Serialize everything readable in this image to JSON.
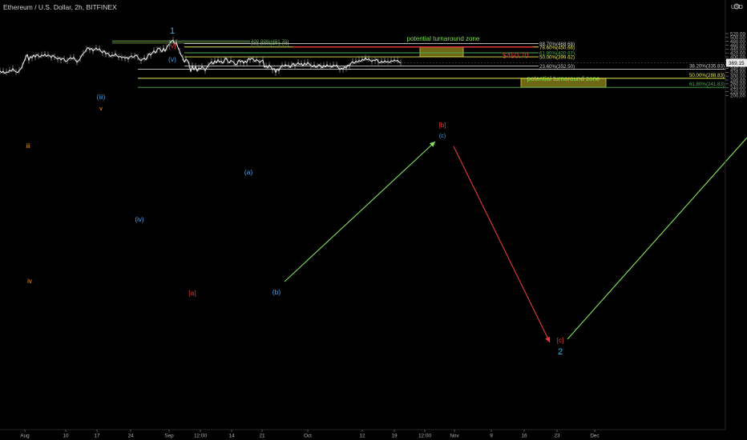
{
  "header": {
    "title": "Ethereum / U.S. Dollar, 2h, BITFINEX",
    "currency": "USD"
  },
  "gear_icon": "gear-icon",
  "chart_data": {
    "type": "line",
    "title": "Ethereum / U.S. Dollar, 2h, BITFINEX",
    "ylabel": "USD",
    "ylim": [
      190,
      530
    ],
    "y_ticks": [
      200,
      220,
      240,
      260,
      280,
      300,
      320,
      340,
      360,
      380,
      400,
      420,
      440,
      460,
      480,
      500,
      520
    ],
    "x_ticks": [
      "Aug",
      "10",
      "17",
      "24",
      "Sep",
      "12:00",
      "14",
      "21",
      "Oct",
      "12",
      "19",
      "12:00",
      "Nov",
      "9",
      "16",
      "23",
      "Dec"
    ],
    "current_price": "369.15",
    "series": [
      {
        "values": [
          [
            0,
            327
          ],
          [
            2,
            318
          ],
          [
            4,
            326
          ],
          [
            6,
            314
          ],
          [
            8,
            322
          ],
          [
            10,
            319
          ],
          [
            12,
            331
          ],
          [
            14,
            325
          ],
          [
            16,
            339
          ],
          [
            18,
            327
          ],
          [
            20,
            322
          ],
          [
            22,
            318
          ],
          [
            24,
            330
          ],
          [
            26,
            337
          ],
          [
            28,
            355
          ],
          [
            30,
            376
          ],
          [
            32,
            396
          ],
          [
            34,
            412
          ],
          [
            36,
            381
          ],
          [
            38,
            402
          ],
          [
            40,
            394
          ],
          [
            42,
            409
          ],
          [
            44,
            398
          ],
          [
            46,
            412
          ],
          [
            48,
            405
          ],
          [
            50,
            398
          ],
          [
            52,
            410
          ],
          [
            54,
            404
          ],
          [
            56,
            414
          ],
          [
            58,
            402
          ],
          [
            60,
            410
          ],
          [
            62,
            405
          ],
          [
            64,
            396
          ],
          [
            66,
            408
          ],
          [
            68,
            400
          ],
          [
            70,
            394
          ],
          [
            72,
            388
          ],
          [
            74,
            396
          ],
          [
            76,
            383
          ],
          [
            78,
            392
          ],
          [
            80,
            388
          ],
          [
            82,
            375
          ],
          [
            84,
            380
          ],
          [
            86,
            390
          ],
          [
            88,
            396
          ],
          [
            90,
            389
          ],
          [
            92,
            398
          ],
          [
            94,
            384
          ],
          [
            96,
            372
          ],
          [
            98,
            380
          ],
          [
            100,
            390
          ],
          [
            102,
            408
          ],
          [
            104,
            418
          ],
          [
            106,
            425
          ],
          [
            108,
            440
          ],
          [
            110,
            448
          ],
          [
            112,
            436
          ],
          [
            114,
            444
          ],
          [
            116,
            430
          ],
          [
            118,
            438
          ],
          [
            120,
            446
          ],
          [
            122,
            435
          ],
          [
            124,
            442
          ],
          [
            126,
            428
          ],
          [
            128,
            421
          ],
          [
            130,
            432
          ],
          [
            132,
            414
          ],
          [
            134,
            420
          ],
          [
            136,
            411
          ],
          [
            138,
            401
          ],
          [
            140,
            410
          ],
          [
            142,
            404
          ],
          [
            144,
            416
          ],
          [
            146,
            405
          ],
          [
            148,
            398
          ],
          [
            150,
            402
          ],
          [
            152,
            395
          ],
          [
            154,
            400
          ],
          [
            156,
            392
          ],
          [
            158,
            398
          ],
          [
            160,
            388
          ],
          [
            162,
            399
          ],
          [
            164,
            405
          ],
          [
            166,
            396
          ],
          [
            168,
            404
          ],
          [
            170,
            410
          ],
          [
            172,
            398
          ],
          [
            174,
            386
          ],
          [
            176,
            380
          ],
          [
            178,
            388
          ],
          [
            180,
            394
          ],
          [
            182,
            384
          ],
          [
            184,
            402
          ],
          [
            186,
            417
          ],
          [
            188,
            408
          ],
          [
            190,
            420
          ],
          [
            192,
            432
          ],
          [
            194,
            420
          ],
          [
            196,
            436
          ],
          [
            198,
            446
          ],
          [
            200,
            438
          ],
          [
            202,
            425
          ],
          [
            204,
            445
          ],
          [
            206,
            428
          ],
          [
            208,
            448
          ],
          [
            210,
            460
          ],
          [
            212,
            470
          ],
          [
            214,
            481
          ],
          [
            216,
            486
          ],
          [
            218,
            466
          ],
          [
            220,
            475
          ],
          [
            222,
            448
          ],
          [
            224,
            430
          ],
          [
            226,
            408
          ],
          [
            228,
            396
          ],
          [
            230,
            372
          ],
          [
            232,
            388
          ],
          [
            234,
            381
          ],
          [
            236,
            360
          ],
          [
            238,
            323
          ],
          [
            240,
            355
          ],
          [
            242,
            332
          ],
          [
            244,
            351
          ],
          [
            246,
            325
          ],
          [
            248,
            343
          ],
          [
            250,
            336
          ],
          [
            252,
            350
          ],
          [
            254,
            342
          ],
          [
            256,
            328
          ],
          [
            258,
            344
          ],
          [
            260,
            356
          ],
          [
            262,
            366
          ],
          [
            264,
            375
          ],
          [
            266,
            362
          ],
          [
            268,
            380
          ],
          [
            270,
            369
          ],
          [
            272,
            386
          ],
          [
            274,
            372
          ],
          [
            276,
            378
          ],
          [
            278,
            366
          ],
          [
            280,
            383
          ],
          [
            282,
            394
          ],
          [
            284,
            378
          ],
          [
            286,
            368
          ],
          [
            288,
            382
          ],
          [
            290,
            376
          ],
          [
            292,
            370
          ],
          [
            294,
            358
          ],
          [
            296,
            364
          ],
          [
            298,
            384
          ],
          [
            300,
            372
          ],
          [
            302,
            380
          ],
          [
            304,
            366
          ],
          [
            306,
            378
          ],
          [
            308,
            370
          ],
          [
            310,
            392
          ],
          [
            312,
            384
          ],
          [
            314,
            393
          ],
          [
            316,
            387
          ],
          [
            318,
            375
          ],
          [
            320,
            386
          ],
          [
            322,
            380
          ],
          [
            324,
            370
          ],
          [
            326,
            378
          ],
          [
            328,
            384
          ],
          [
            330,
            346
          ],
          [
            332,
            354
          ],
          [
            334,
            342
          ],
          [
            336,
            357
          ],
          [
            338,
            348
          ],
          [
            340,
            332
          ],
          [
            342,
            340
          ],
          [
            344,
            318
          ],
          [
            346,
            338
          ],
          [
            348,
            328
          ],
          [
            350,
            346
          ],
          [
            352,
            356
          ],
          [
            354,
            350
          ],
          [
            356,
            360
          ],
          [
            358,
            352
          ],
          [
            360,
            356
          ],
          [
            362,
            344
          ],
          [
            364,
            358
          ],
          [
            366,
            366
          ],
          [
            368,
            352
          ],
          [
            370,
            362
          ],
          [
            372,
            370
          ],
          [
            374,
            360
          ],
          [
            376,
            366
          ],
          [
            378,
            354
          ],
          [
            380,
            368
          ],
          [
            382,
            358
          ],
          [
            384,
            372
          ],
          [
            386,
            362
          ],
          [
            388,
            354
          ],
          [
            390,
            348
          ],
          [
            392,
            358
          ],
          [
            394,
            345
          ],
          [
            396,
            350
          ],
          [
            398,
            360
          ],
          [
            400,
            352
          ],
          [
            402,
            342
          ],
          [
            404,
            356
          ],
          [
            406,
            347
          ],
          [
            408,
            360
          ],
          [
            410,
            350
          ],
          [
            412,
            354
          ],
          [
            414,
            345
          ],
          [
            416,
            358
          ],
          [
            418,
            351
          ],
          [
            420,
            358
          ],
          [
            422,
            344
          ],
          [
            424,
            334
          ],
          [
            426,
            342
          ],
          [
            428,
            335
          ],
          [
            430,
            348
          ],
          [
            432,
            342
          ],
          [
            434,
            358
          ],
          [
            436,
            352
          ],
          [
            438,
            368
          ],
          [
            440,
            375
          ],
          [
            442,
            366
          ],
          [
            444,
            378
          ],
          [
            446,
            372
          ],
          [
            448,
            382
          ],
          [
            450,
            375
          ],
          [
            452,
            388
          ],
          [
            454,
            382
          ],
          [
            456,
            395
          ],
          [
            458,
            384
          ],
          [
            460,
            390
          ],
          [
            462,
            381
          ],
          [
            464,
            376
          ],
          [
            466,
            384
          ],
          [
            468,
            380
          ],
          [
            470,
            388
          ],
          [
            472,
            374
          ],
          [
            474,
            368
          ],
          [
            476,
            378
          ],
          [
            478,
            370
          ],
          [
            480,
            380
          ],
          [
            482,
            372
          ],
          [
            484,
            376
          ],
          [
            486,
            370
          ],
          [
            488,
            380
          ],
          [
            490,
            376
          ],
          [
            492,
            384
          ],
          [
            494,
            378
          ],
          [
            496,
            382
          ],
          [
            498,
            372
          ],
          [
            500,
            369
          ]
        ]
      }
    ],
    "horizontal_levels": [
      {
        "label": "400.00%(481.70)",
        "value": 481.7,
        "color": "#6aa84f"
      },
      {
        "label": "361.80%(471.20)",
        "value": 471.2,
        "color": "#6aa84f"
      },
      {
        "label": "88.70%(468.68)",
        "value": 468.68,
        "color": "#cccccc"
      },
      {
        "label": "78.60%(450.66)",
        "value": 450.66,
        "color": "#e8e85a"
      },
      {
        "label": "61.80%(420.67)",
        "value": 420.67,
        "color": "#4caf50"
      },
      {
        "label": "50.00%(399.62)",
        "value": 399.62,
        "color": "#e8e85a"
      },
      {
        "label": "23.60%(352.50)",
        "value": 352.5,
        "color": "#cccccc"
      },
      {
        "label": "38.20%(335.83)",
        "value": 335.83,
        "color": "#cccccc"
      },
      {
        "label": "50.00%(288.83)",
        "value": 288.83,
        "color": "#e8e85a"
      },
      {
        "label": "61.80%(241.83)",
        "value": 241.83,
        "color": "#4caf50"
      }
    ],
    "key_level": {
      "label": "$450.70",
      "value": 450.7,
      "color": "#e53935"
    },
    "zones": [
      {
        "label": "potential turnaround zone",
        "y_from": 399.62,
        "y_to": 450.66
      },
      {
        "label": "potential turnaround zone",
        "y_from": 241.83,
        "y_to": 288.83
      }
    ],
    "wave_labels": [
      {
        "text": "1",
        "color": "#29b6f6"
      },
      {
        "text": "[v]",
        "color": "#e53935"
      },
      {
        "text": "(v)",
        "color": "#42a5f5"
      },
      {
        "text": "(iii)",
        "color": "#42a5f5"
      },
      {
        "text": "v",
        "color": "#ff9800"
      },
      {
        "text": "iii",
        "color": "#ff9800"
      },
      {
        "text": "iv",
        "color": "#ff9800"
      },
      {
        "text": "(iv)",
        "color": "#42a5f5"
      },
      {
        "text": "[a]",
        "color": "#e53935"
      },
      {
        "text": "(a)",
        "color": "#42a5f5"
      },
      {
        "text": "(b)",
        "color": "#42a5f5"
      },
      {
        "text": "(c)",
        "color": "#42a5f5"
      },
      {
        "text": "[b]",
        "color": "#e53935"
      },
      {
        "text": "[c]",
        "color": "#e53935"
      },
      {
        "text": "2",
        "color": "#29b6f6"
      }
    ]
  }
}
